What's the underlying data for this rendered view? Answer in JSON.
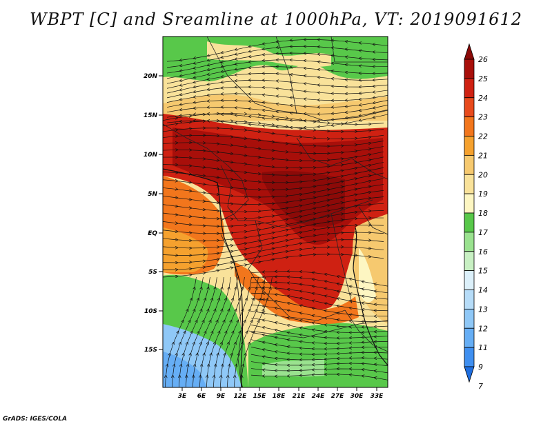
{
  "title": "WBPT [C] and Sreamline at 1000hPa, VT: 2019091612",
  "credit": "GrADS: IGES/COLA",
  "map": {
    "lat_labels": [
      "20N",
      "15N",
      "10N",
      "5N",
      "EQ",
      "5S",
      "10S",
      "15S"
    ],
    "lon_labels": [
      "3E",
      "6E",
      "9E",
      "12E",
      "15E",
      "18E",
      "21E",
      "24E",
      "27E",
      "30E",
      "33E"
    ]
  },
  "colorbar": {
    "levels": [
      "7",
      "9",
      "11",
      "12",
      "13",
      "14",
      "15",
      "16",
      "17",
      "18",
      "19",
      "20",
      "21",
      "22",
      "23",
      "24",
      "25",
      "26"
    ],
    "colors": [
      "#1e6ee0",
      "#3f8ff0",
      "#66aef5",
      "#8fc8f7",
      "#b6dcf8",
      "#dcf0fa",
      "#c8f0c3",
      "#9ae28f",
      "#58c84a",
      "#fdf6c2",
      "#f9e29a",
      "#f6c96f",
      "#f5a12e",
      "#f2761c",
      "#e84a1c",
      "#cf2112",
      "#a80f0a",
      "#8c0a08"
    ]
  }
}
